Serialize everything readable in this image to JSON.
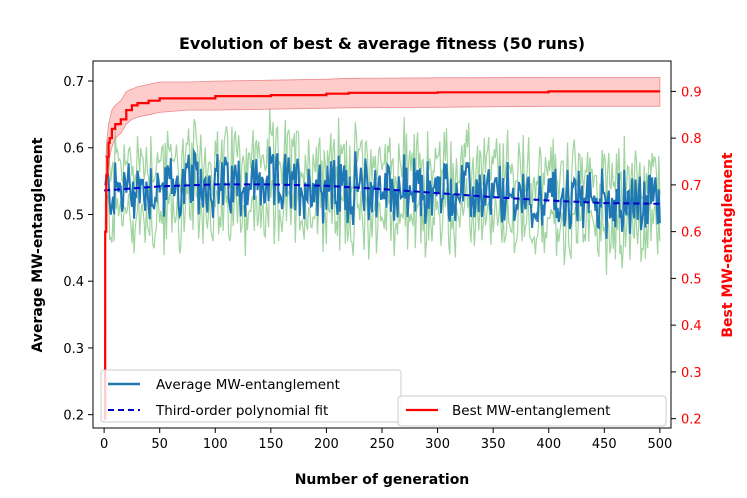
{
  "chart_data": {
    "type": "line",
    "title": "Evolution of best & average fitness (50 runs)",
    "xlabel": "Number of generation",
    "ylabel_left": "Average MW-entanglement",
    "ylabel_right": "Best MW-entanglement",
    "xlim": [
      -10,
      510
    ],
    "ylim_left": [
      0.18,
      0.73
    ],
    "ylim_right": [
      0.18,
      0.965
    ],
    "xticks": [
      "0",
      "50",
      "100",
      "150",
      "200",
      "250",
      "300",
      "350",
      "400",
      "450",
      "500"
    ],
    "yticks_left": [
      "0.2",
      "0.3",
      "0.4",
      "0.5",
      "0.6",
      "0.7"
    ],
    "yticks_right": [
      "0.2",
      "0.3",
      "0.4",
      "0.5",
      "0.6",
      "0.7",
      "0.8",
      "0.9"
    ],
    "grid": false,
    "legends": [
      {
        "placement": "lower-left",
        "entries": [
          "Average MW-entanglement",
          "Third-order polynomial fit"
        ]
      },
      {
        "placement": "lower-right",
        "entries": [
          "Best MW-entanglement"
        ]
      }
    ],
    "series": [
      {
        "name": "Average MW-entanglement",
        "axis": "left",
        "color": "#1f77b4",
        "band_color": "#2ca02c",
        "x_range": [
          0,
          500
        ],
        "noise_amplitude": 0.045,
        "trend_points": [
          [
            0,
            0.535
          ],
          [
            50,
            0.54
          ],
          [
            100,
            0.545
          ],
          [
            150,
            0.545
          ],
          [
            200,
            0.542
          ],
          [
            250,
            0.538
          ],
          [
            300,
            0.533
          ],
          [
            350,
            0.527
          ],
          [
            400,
            0.522
          ],
          [
            450,
            0.518
          ],
          [
            500,
            0.516
          ]
        ]
      },
      {
        "name": "Third-order polynomial fit",
        "axis": "left",
        "color": "#0000cc",
        "style": "dashed",
        "x": [
          0,
          50,
          100,
          150,
          200,
          250,
          300,
          350,
          400,
          450,
          500
        ],
        "y": [
          0.536,
          0.542,
          0.545,
          0.545,
          0.543,
          0.538,
          0.532,
          0.526,
          0.521,
          0.517,
          0.516
        ]
      },
      {
        "name": "Best MW-entanglement",
        "axis": "right",
        "color": "#ff0000",
        "band_color": "#ff9999",
        "x": [
          0,
          1,
          2,
          3,
          4,
          5,
          7,
          10,
          15,
          20,
          25,
          30,
          40,
          50,
          75,
          100,
          150,
          200,
          220,
          300,
          400,
          500
        ],
        "y": [
          0.2,
          0.6,
          0.72,
          0.76,
          0.79,
          0.8,
          0.82,
          0.83,
          0.84,
          0.86,
          0.87,
          0.875,
          0.88,
          0.885,
          0.885,
          0.89,
          0.892,
          0.895,
          0.897,
          0.898,
          0.9,
          0.9
        ],
        "band_lower": [
          0.2,
          0.55,
          0.66,
          0.71,
          0.74,
          0.76,
          0.78,
          0.8,
          0.81,
          0.83,
          0.84,
          0.845,
          0.85,
          0.855,
          0.86,
          0.86,
          0.862,
          0.864,
          0.865,
          0.866,
          0.868,
          0.868
        ],
        "band_upper": [
          0.2,
          0.66,
          0.78,
          0.81,
          0.83,
          0.84,
          0.86,
          0.87,
          0.88,
          0.9,
          0.905,
          0.91,
          0.915,
          0.92,
          0.92,
          0.922,
          0.924,
          0.926,
          0.928,
          0.929,
          0.93,
          0.93
        ]
      }
    ]
  }
}
